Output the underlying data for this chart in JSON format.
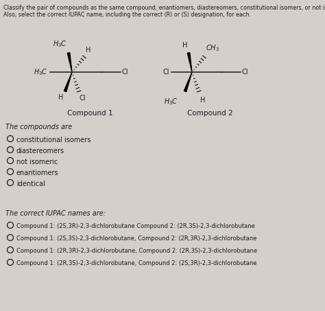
{
  "background_color": "#d4cfc9",
  "title_lines": [
    "Classify the pair of compounds as the same compound, enantiomers, diastereomers, constitutional isomers, or not isomeric.",
    "Also, select the correct IUPAC name, including the correct (R) or (S) designation, for each."
  ],
  "compounds_label": "The compounds are",
  "compound1_label": "Compound 1",
  "compound2_label": "Compound 2",
  "radio_options": [
    "constitutional isomers",
    "diastereomers",
    "not isomeric",
    "enantiomers",
    "identical"
  ],
  "iupac_label": "The correct IUPAC names are:",
  "iupac_options": [
    "Compound 1: (2S,3R)-2,3-dichlorobutane Compound 2: (2R,3S)-2,3-dichlorobutane",
    "Compound 1: (2S,3S)-2,3-dichlorobutane, Compound 2: (2R,3R)-2,3-dichlorobutane",
    "Compound 1: (2R,3R)-2,3-dichlorobutane, Compound 2: (2R,3S)-2,3-dichlorobutane",
    "Compound 1: (2R,3S)-2,3-dichlorobutane, Compound 2: (2S,3R)-2,3-dichlorobutane"
  ],
  "font_size_title": 5.8,
  "font_size_body": 7.0,
  "font_size_label": 7.5,
  "font_size_chem": 7.0,
  "font_size_iupac": 6.0
}
